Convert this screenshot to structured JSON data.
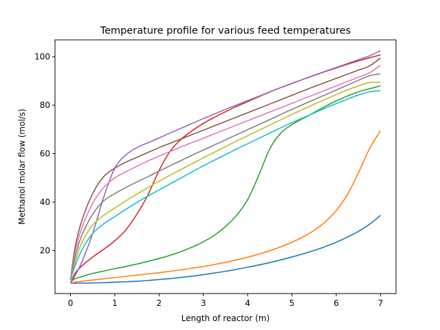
{
  "chart_data": {
    "type": "line",
    "title": "Temperature profile for various feed temperatures",
    "xlabel": "Length of reactor (m)",
    "ylabel": "Methanol molar flow (mol/s)",
    "xlim": [
      -0.35,
      7.35
    ],
    "ylim": [
      2.2,
      107.0
    ],
    "xticks": [
      0,
      1,
      2,
      3,
      4,
      5,
      6,
      7
    ],
    "yticks": [
      20,
      40,
      60,
      80,
      100
    ],
    "grid": false,
    "legend": "none",
    "x": [
      0,
      0.1,
      0.25,
      0.5,
      0.75,
      1,
      1.25,
      1.5,
      1.75,
      2,
      2.25,
      2.5,
      2.75,
      3,
      3.25,
      3.5,
      3.75,
      4,
      4.25,
      4.5,
      4.75,
      5,
      5.25,
      5.5,
      5.75,
      6,
      6.25,
      6.5,
      6.75,
      7
    ],
    "series": [
      {
        "color": "#1f77b4",
        "values": [
          6.5,
          6.5,
          6.5,
          6.6,
          6.7,
          6.9,
          7.1,
          7.3,
          7.6,
          8.0,
          8.4,
          8.9,
          9.4,
          10.0,
          10.7,
          11.4,
          12.2,
          13.1,
          14.0,
          15.0,
          16.1,
          17.3,
          18.6,
          20.0,
          21.6,
          23.4,
          25.5,
          27.9,
          30.8,
          34.5
        ]
      },
      {
        "color": "#ff7f0e",
        "values": [
          6.5,
          6.9,
          7.3,
          7.8,
          8.3,
          8.8,
          9.3,
          9.8,
          10.3,
          10.8,
          11.4,
          12.0,
          12.7,
          13.4,
          14.2,
          15.1,
          16.1,
          17.2,
          18.5,
          19.9,
          21.5,
          23.4,
          25.6,
          28.3,
          31.8,
          36.5,
          43.0,
          52.0,
          62.0,
          69.5
        ]
      },
      {
        "color": "#2ca02c",
        "values": [
          7.0,
          8.3,
          9.2,
          10.5,
          11.5,
          12.5,
          13.4,
          14.4,
          15.5,
          16.7,
          18.0,
          19.6,
          21.4,
          23.6,
          26.3,
          29.9,
          34.5,
          41.0,
          51.0,
          62.0,
          68.5,
          72.0,
          74.5,
          77.0,
          79.5,
          81.8,
          83.8,
          85.5,
          86.8,
          88.0
        ]
      },
      {
        "color": "#d62728",
        "values": [
          6.5,
          10.5,
          13.5,
          17.3,
          20.5,
          24.0,
          28.5,
          35.0,
          43.0,
          53.0,
          61.0,
          66.0,
          69.5,
          72.5,
          75.0,
          77.3,
          79.5,
          81.5,
          83.5,
          85.5,
          87.3,
          89.0,
          90.7,
          92.3,
          93.9,
          95.4,
          96.9,
          98.3,
          99.6,
          100.8
        ]
      },
      {
        "color": "#9467bd",
        "values": [
          6.5,
          9.5,
          15.0,
          27.0,
          42.0,
          54.0,
          59.5,
          62.5,
          64.5,
          66.5,
          68.5,
          70.5,
          72.5,
          74.5,
          76.4,
          78.3,
          80.1,
          81.9,
          83.7,
          85.5,
          87.3,
          89.0,
          90.7,
          92.4,
          94.0,
          95.6,
          97.2,
          98.8,
          100.4,
          102.5
        ]
      },
      {
        "color": "#8c564b",
        "values": [
          8.0,
          21.0,
          32.0,
          43.5,
          50.5,
          54.0,
          56.5,
          58.5,
          60.5,
          62.5,
          64.3,
          66.1,
          67.9,
          69.7,
          71.5,
          73.3,
          75.1,
          76.9,
          78.7,
          80.5,
          82.3,
          84.1,
          85.9,
          87.7,
          89.4,
          91.1,
          92.8,
          94.5,
          96.2,
          99.5
        ]
      },
      {
        "color": "#e377c2",
        "values": [
          8.0,
          19.0,
          29.0,
          39.5,
          46.0,
          50.0,
          52.5,
          54.8,
          57.0,
          59.0,
          60.9,
          62.8,
          64.6,
          66.4,
          68.2,
          70.0,
          71.8,
          73.6,
          75.4,
          77.2,
          79.0,
          80.8,
          82.6,
          84.4,
          86.2,
          88.0,
          89.8,
          91.6,
          93.4,
          96.5
        ]
      },
      {
        "color": "#7f7f7f",
        "values": [
          8.0,
          17.0,
          26.0,
          35.0,
          40.5,
          43.5,
          46.0,
          48.3,
          50.5,
          52.8,
          55.0,
          57.2,
          59.4,
          61.5,
          63.6,
          65.7,
          67.8,
          69.9,
          72.0,
          74.1,
          76.2,
          78.3,
          80.3,
          82.3,
          84.3,
          86.3,
          88.3,
          90.3,
          92.2,
          93.0
        ]
      },
      {
        "color": "#bcbd22",
        "values": [
          8.0,
          15.0,
          23.0,
          30.5,
          34.5,
          37.5,
          40.5,
          43.3,
          46.0,
          48.6,
          51.1,
          53.5,
          55.9,
          58.3,
          60.6,
          62.9,
          65.2,
          67.4,
          69.6,
          71.8,
          74.0,
          76.2,
          78.3,
          80.4,
          82.4,
          84.4,
          86.3,
          88.0,
          89.4,
          89.5
        ]
      },
      {
        "color": "#17becf",
        "values": [
          8.0,
          13.5,
          20.0,
          27.0,
          31.0,
          34.0,
          37.0,
          39.8,
          42.5,
          45.0,
          47.5,
          50.0,
          52.5,
          55.0,
          57.3,
          59.6,
          61.9,
          64.1,
          66.3,
          68.5,
          70.7,
          72.8,
          74.8,
          76.8,
          78.8,
          80.7,
          82.5,
          84.2,
          85.5,
          86.0
        ]
      }
    ]
  }
}
